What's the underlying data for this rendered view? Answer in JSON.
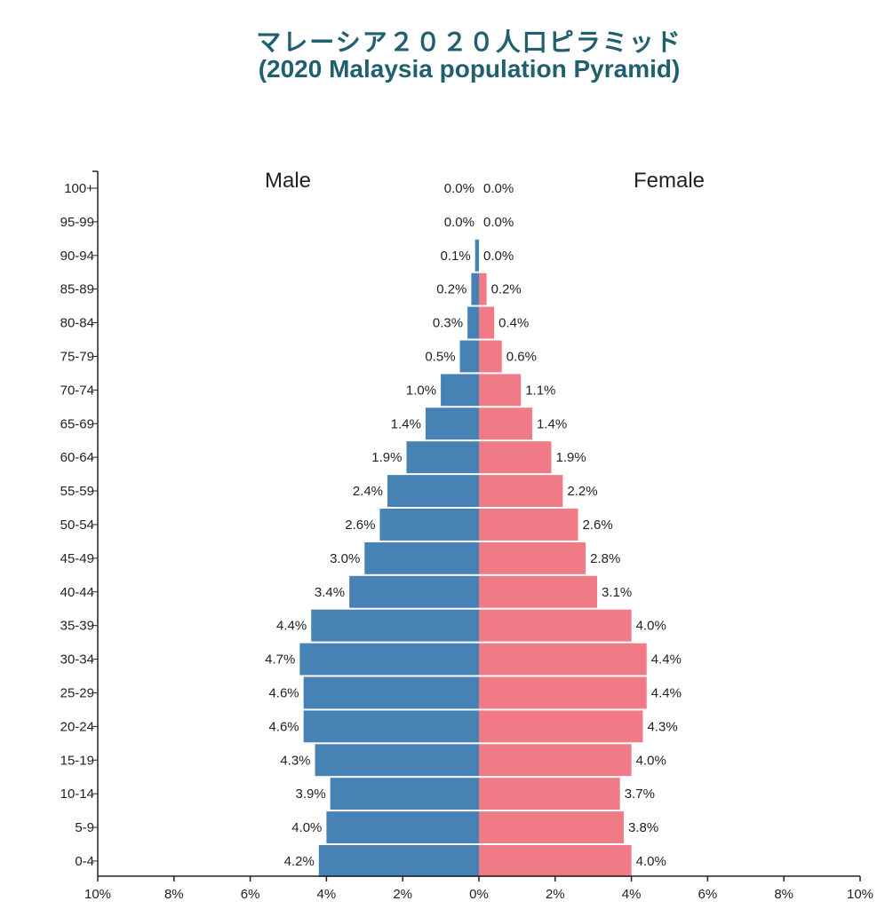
{
  "title": {
    "line1": "マレーシア２０２０人口ピラミッド",
    "line2": "(2020 Malaysia population Pyramid)"
  },
  "colors": {
    "male": "#4682b4",
    "female": "#f07a85",
    "title": "#1f5f6e",
    "axis": "#222222"
  },
  "chart_data": {
    "type": "bar",
    "orientation": "horizontal-pyramid",
    "categories": [
      "100+",
      "95-99",
      "90-94",
      "85-89",
      "80-84",
      "75-79",
      "70-74",
      "65-69",
      "60-64",
      "55-59",
      "50-54",
      "45-49",
      "40-44",
      "35-39",
      "30-34",
      "25-29",
      "20-24",
      "15-19",
      "10-14",
      "5-9",
      "0-4"
    ],
    "series": [
      {
        "name": "Male",
        "values": [
          0.0,
          0.0,
          0.1,
          0.2,
          0.3,
          0.5,
          1.0,
          1.4,
          1.9,
          2.4,
          2.6,
          3.0,
          3.4,
          4.4,
          4.7,
          4.6,
          4.6,
          4.3,
          3.9,
          4.0,
          4.2
        ],
        "labels": [
          "0.0%",
          "0.0%",
          "0.1%",
          "0.2%",
          "0.3%",
          "0.5%",
          "1.0%",
          "1.4%",
          "1.9%",
          "2.4%",
          "2.6%",
          "3.0%",
          "3.4%",
          "4.4%",
          "4.7%",
          "4.6%",
          "4.6%",
          "4.3%",
          "3.9%",
          "4.0%",
          "4.2%"
        ]
      },
      {
        "name": "Female",
        "values": [
          0.0,
          0.0,
          0.0,
          0.2,
          0.4,
          0.6,
          1.1,
          1.4,
          1.9,
          2.2,
          2.6,
          2.8,
          3.1,
          4.0,
          4.4,
          4.4,
          4.3,
          4.0,
          3.7,
          3.8,
          4.0
        ],
        "labels": [
          "0.0%",
          "0.0%",
          "0.0%",
          "0.2%",
          "0.4%",
          "0.6%",
          "1.1%",
          "1.4%",
          "1.9%",
          "2.2%",
          "2.6%",
          "2.8%",
          "3.1%",
          "4.0%",
          "4.4%",
          "4.4%",
          "4.3%",
          "4.0%",
          "3.7%",
          "3.8%",
          "4.0%"
        ]
      }
    ],
    "x_ticks": [
      "10%",
      "8%",
      "6%",
      "4%",
      "2%",
      "0%",
      "2%",
      "4%",
      "6%",
      "8%",
      "10%"
    ],
    "xlim": [
      -10,
      10
    ],
    "grid": false,
    "legend": "side labels"
  }
}
